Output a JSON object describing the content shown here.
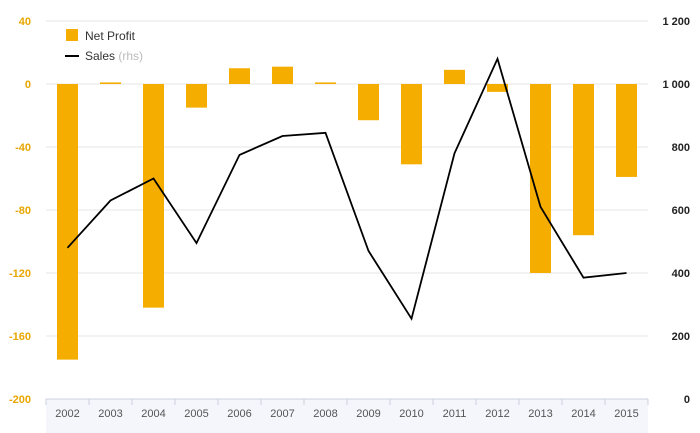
{
  "chart_data": {
    "type": "bar",
    "categories": [
      "2002",
      "2003",
      "2004",
      "2005",
      "2006",
      "2007",
      "2008",
      "2009",
      "2010",
      "2011",
      "2012",
      "2013",
      "2014",
      "2015"
    ],
    "series": [
      {
        "name": "Net Profit",
        "type": "bar",
        "axis": "left",
        "color": "#f5ad00",
        "values": [
          -175,
          1,
          -142,
          -15,
          10,
          11,
          1,
          -23,
          -51,
          9,
          -5,
          -120,
          -96,
          -59
        ]
      },
      {
        "name": "Sales",
        "name_suffix": "(rhs)",
        "type": "line",
        "axis": "right",
        "color": "#000000",
        "values": [
          480,
          630,
          700,
          495,
          775,
          835,
          845,
          470,
          255,
          780,
          1080,
          610,
          385,
          400
        ]
      }
    ],
    "left_axis": {
      "ylim": [
        -200,
        40
      ],
      "ticks": [
        40,
        0,
        -40,
        -80,
        -120,
        -160,
        -200
      ],
      "tick_labels": [
        "40",
        "0",
        "-40",
        "-80",
        "-120",
        "-160",
        "-200"
      ]
    },
    "right_axis": {
      "ylim": [
        0,
        1200
      ],
      "ticks": [
        1200,
        1000,
        800,
        600,
        400,
        200,
        0
      ],
      "tick_labels": [
        "1 200",
        "1 000",
        "800",
        "600",
        "400",
        "200",
        "0"
      ]
    },
    "grid": true,
    "legend_position": "top-left",
    "title": "",
    "xlabel": "",
    "ylabel": ""
  }
}
